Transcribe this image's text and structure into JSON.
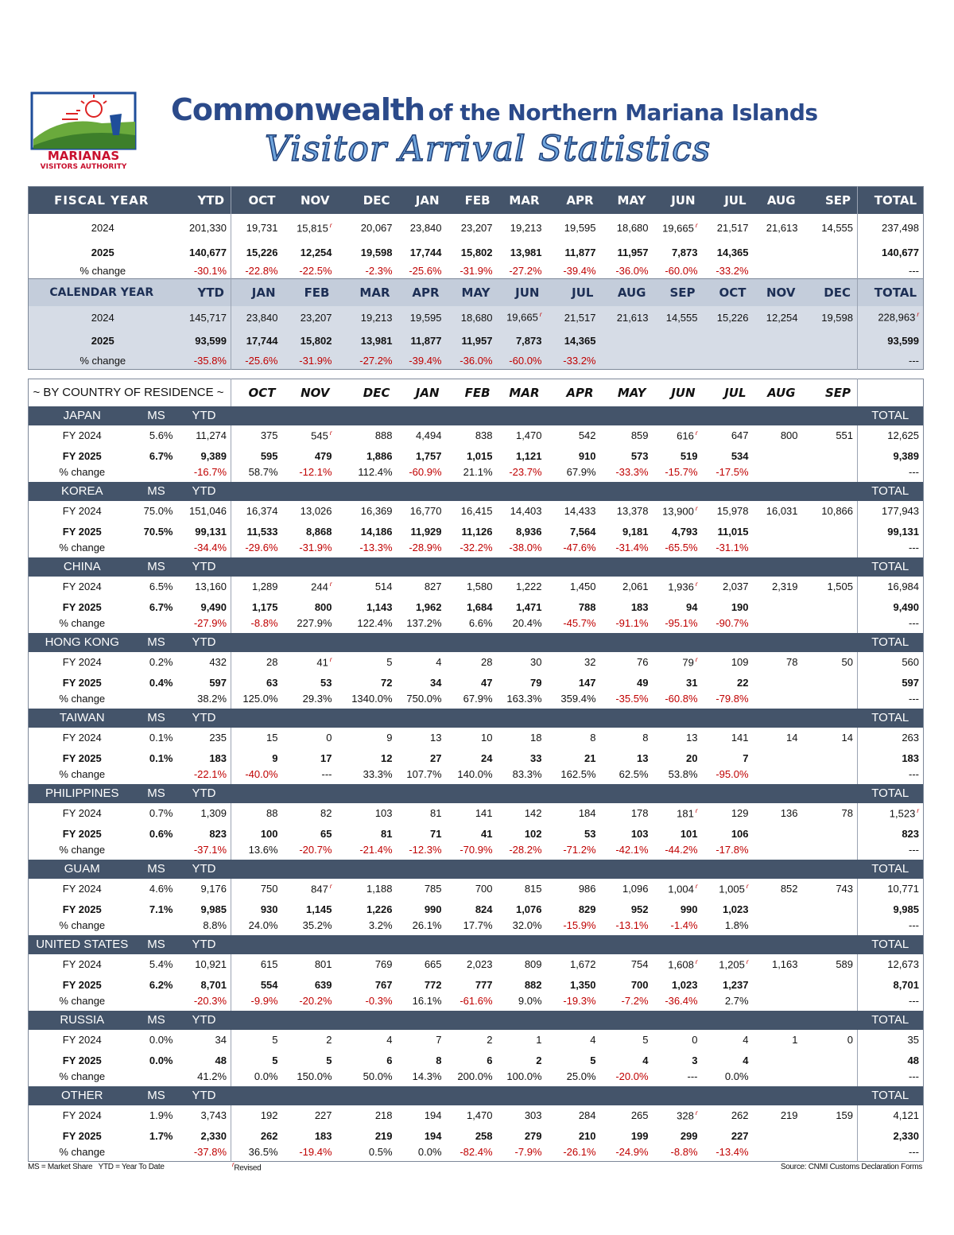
{
  "header": {
    "logo_line1": "MARIANAS",
    "logo_line2": "VISITORS AUTHORITY",
    "title_main": "Commonwealth",
    "title_rest": "of the Northern Mariana Islands",
    "subtitle": "Visitor Arrival Statistics"
  },
  "fiscal": {
    "header": [
      "FISCAL YEAR",
      "YTD",
      "OCT",
      "NOV",
      "DEC",
      "JAN",
      "FEB",
      "MAR",
      "APR",
      "MAY",
      "JUN",
      "JUL",
      "AUG",
      "SEP",
      "TOTAL"
    ],
    "rows": [
      [
        "2024",
        "201,330",
        "19,731",
        {
          "v": "15,815",
          "r": "r"
        },
        "20,067",
        "23,840",
        "23,207",
        "19,213",
        "19,595",
        "18,680",
        {
          "v": "19,665",
          "r": "r"
        },
        "21,517",
        "21,613",
        "14,555",
        "237,498"
      ],
      [
        "2025",
        "140,677",
        "15,226",
        "12,254",
        "19,598",
        "17,744",
        "15,802",
        "13,981",
        "11,877",
        "11,957",
        "7,873",
        "14,365",
        null,
        null,
        "140,677"
      ],
      [
        "% change",
        "-30.1%",
        "-22.8%",
        "-22.5%",
        "-2.3%",
        "-25.6%",
        "-31.9%",
        "-27.2%",
        "-39.4%",
        "-36.0%",
        "-60.0%",
        "-33.2%",
        null,
        null,
        "---"
      ]
    ]
  },
  "calendar": {
    "header": [
      "CALENDAR YEAR",
      "YTD",
      "JAN",
      "FEB",
      "MAR",
      "APR",
      "MAY",
      "JUN",
      "JUL",
      "AUG",
      "SEP",
      "OCT",
      "NOV",
      "DEC",
      "TOTAL"
    ],
    "rows": [
      [
        "2024",
        "145,717",
        "23,840",
        "23,207",
        "19,213",
        "19,595",
        "18,680",
        {
          "v": "19,665",
          "r": "r"
        },
        "21,517",
        "21,613",
        "14,555",
        "15,226",
        "12,254",
        "19,598",
        {
          "v": "228,963",
          "r": "r"
        }
      ],
      [
        "2025",
        "93,599",
        "17,744",
        "15,802",
        "13,981",
        "11,877",
        "11,957",
        "7,873",
        "14,365",
        null,
        null,
        null,
        null,
        null,
        "93,599"
      ],
      [
        "% change",
        "-35.8%",
        "-25.6%",
        "-31.9%",
        "-27.2%",
        "-39.4%",
        "-36.0%",
        "-60.0%",
        "-33.2%",
        null,
        null,
        null,
        null,
        null,
        "---"
      ]
    ]
  },
  "by_country": {
    "header": [
      "~ BY COUNTRY OF RESIDENCE ~",
      "OCT",
      "NOV",
      "DEC",
      "JAN",
      "FEB",
      "MAR",
      "APR",
      "MAY",
      "JUN",
      "JUL",
      "AUG",
      "SEP"
    ],
    "countries": [
      {
        "name": "JAPAN",
        "ms_label": "MS",
        "ytd_label": "YTD",
        "total_label": "TOTAL",
        "rows": [
          [
            "FY 2024",
            "5.6%",
            "11,274",
            "375",
            {
              "v": "545",
              "r": "r"
            },
            "888",
            "4,494",
            "838",
            "1,470",
            "542",
            "859",
            {
              "v": "616",
              "r": "r"
            },
            "647",
            "800",
            "551",
            "12,625"
          ],
          [
            "FY 2025",
            "6.7%",
            "9,389",
            "595",
            "479",
            "1,886",
            "1,757",
            "1,015",
            "1,121",
            "910",
            "573",
            "519",
            "534",
            null,
            null,
            "9,389"
          ],
          [
            "% change",
            null,
            "-16.7%",
            "58.7%",
            "-12.1%",
            "112.4%",
            "-60.9%",
            "21.1%",
            "-23.7%",
            "67.9%",
            "-33.3%",
            "-15.7%",
            "-17.5%",
            null,
            null,
            "---"
          ]
        ]
      },
      {
        "name": "KOREA",
        "ms_label": "MS",
        "ytd_label": "YTD",
        "total_label": "TOTAL",
        "rows": [
          [
            "FY 2024",
            "75.0%",
            "151,046",
            "16,374",
            "13,026",
            "16,369",
            "16,770",
            "16,415",
            "14,403",
            "14,433",
            "13,378",
            {
              "v": "13,900",
              "r": "r"
            },
            "15,978",
            "16,031",
            "10,866",
            "177,943"
          ],
          [
            "FY 2025",
            "70.5%",
            "99,131",
            "11,533",
            "8,868",
            "14,186",
            "11,929",
            "11,126",
            "8,936",
            "7,564",
            "9,181",
            "4,793",
            "11,015",
            null,
            null,
            "99,131"
          ],
          [
            "% change",
            null,
            "-34.4%",
            "-29.6%",
            "-31.9%",
            "-13.3%",
            "-28.9%",
            "-32.2%",
            "-38.0%",
            "-47.6%",
            "-31.4%",
            "-65.5%",
            "-31.1%",
            null,
            null,
            "---"
          ]
        ]
      },
      {
        "name": "CHINA",
        "ms_label": "MS",
        "ytd_label": "YTD",
        "total_label": "TOTAL",
        "rows": [
          [
            "FY 2024",
            "6.5%",
            "13,160",
            "1,289",
            {
              "v": "244",
              "r": "r"
            },
            "514",
            "827",
            "1,580",
            "1,222",
            "1,450",
            "2,061",
            {
              "v": "1,936",
              "r": "r"
            },
            "2,037",
            "2,319",
            "1,505",
            "16,984"
          ],
          [
            "FY 2025",
            "6.7%",
            "9,490",
            "1,175",
            "800",
            "1,143",
            "1,962",
            "1,684",
            "1,471",
            "788",
            "183",
            "94",
            "190",
            null,
            null,
            "9,490"
          ],
          [
            "% change",
            null,
            "-27.9%",
            "-8.8%",
            "227.9%",
            "122.4%",
            "137.2%",
            "6.6%",
            "20.4%",
            "-45.7%",
            "-91.1%",
            "-95.1%",
            "-90.7%",
            null,
            null,
            "---"
          ]
        ]
      },
      {
        "name": "HONG KONG",
        "ms_label": "MS",
        "ytd_label": "YTD",
        "total_label": "TOTAL",
        "rows": [
          [
            "FY 2024",
            "0.2%",
            "432",
            "28",
            {
              "v": "41",
              "r": "r"
            },
            "5",
            "4",
            "28",
            "30",
            "32",
            "76",
            {
              "v": "79",
              "r": "r"
            },
            "109",
            "78",
            "50",
            "560"
          ],
          [
            "FY 2025",
            "0.4%",
            "597",
            "63",
            "53",
            "72",
            "34",
            "47",
            "79",
            "147",
            "49",
            "31",
            "22",
            null,
            null,
            "597"
          ],
          [
            "% change",
            null,
            "38.2%",
            "125.0%",
            "29.3%",
            "1340.0%",
            "750.0%",
            "67.9%",
            "163.3%",
            "359.4%",
            "-35.5%",
            "-60.8%",
            "-79.8%",
            null,
            null,
            "---"
          ]
        ]
      },
      {
        "name": "TAIWAN",
        "ms_label": "MS",
        "ytd_label": "YTD",
        "total_label": "TOTAL",
        "rows": [
          [
            "FY 2024",
            "0.1%",
            "235",
            "15",
            "0",
            "9",
            "13",
            "10",
            "18",
            "8",
            "8",
            "13",
            "141",
            "14",
            "14",
            "263"
          ],
          [
            "FY 2025",
            "0.1%",
            "183",
            "9",
            "17",
            "12",
            "27",
            "24",
            "33",
            "21",
            "13",
            "20",
            "7",
            null,
            null,
            "183"
          ],
          [
            "% change",
            null,
            "-22.1%",
            "-40.0%",
            "---",
            "33.3%",
            "107.7%",
            "140.0%",
            "83.3%",
            "162.5%",
            "62.5%",
            "53.8%",
            "-95.0%",
            null,
            null,
            "---"
          ]
        ]
      },
      {
        "name": "PHILIPPINES",
        "ms_label": "MS",
        "ytd_label": "YTD",
        "total_label": "TOTAL",
        "rows": [
          [
            "FY 2024",
            "0.7%",
            "1,309",
            "88",
            "82",
            "103",
            "81",
            "141",
            "142",
            "184",
            "178",
            {
              "v": "181",
              "r": "r"
            },
            "129",
            "136",
            "78",
            {
              "v": "1,523",
              "r": "r"
            }
          ],
          [
            "FY 2025",
            "0.6%",
            "823",
            "100",
            "65",
            "81",
            "71",
            "41",
            "102",
            "53",
            "103",
            "101",
            "106",
            null,
            null,
            "823"
          ],
          [
            "% change",
            null,
            "-37.1%",
            "13.6%",
            "-20.7%",
            "-21.4%",
            "-12.3%",
            "-70.9%",
            "-28.2%",
            "-71.2%",
            "-42.1%",
            "-44.2%",
            "-17.8%",
            null,
            null,
            "---"
          ]
        ]
      },
      {
        "name": "GUAM",
        "ms_label": "MS",
        "ytd_label": "YTD",
        "total_label": "TOTAL",
        "rows": [
          [
            "FY 2024",
            "4.6%",
            "9,176",
            "750",
            {
              "v": "847",
              "r": "r"
            },
            "1,188",
            "785",
            "700",
            "815",
            "986",
            "1,096",
            {
              "v": "1,004",
              "r": "r"
            },
            {
              "v": "1,005",
              "r": "r"
            },
            "852",
            "743",
            "10,771"
          ],
          [
            "FY 2025",
            "7.1%",
            "9,985",
            "930",
            "1,145",
            "1,226",
            "990",
            "824",
            "1,076",
            "829",
            "952",
            "990",
            "1,023",
            null,
            null,
            "9,985"
          ],
          [
            "% change",
            null,
            "8.8%",
            "24.0%",
            "35.2%",
            "3.2%",
            "26.1%",
            "17.7%",
            "32.0%",
            "-15.9%",
            "-13.1%",
            "-1.4%",
            "1.8%",
            null,
            null,
            "---"
          ]
        ]
      },
      {
        "name": "UNITED STATES",
        "ms_label": "MS",
        "ytd_label": "YTD",
        "total_label": "TOTAL",
        "rows": [
          [
            "FY 2024",
            "5.4%",
            "10,921",
            "615",
            "801",
            "769",
            "665",
            "2,023",
            "809",
            "1,672",
            "754",
            {
              "v": "1,608",
              "r": "r"
            },
            {
              "v": "1,205",
              "r": "r"
            },
            "1,163",
            "589",
            "12,673"
          ],
          [
            "FY 2025",
            "6.2%",
            "8,701",
            "554",
            "639",
            "767",
            "772",
            "777",
            "882",
            "1,350",
            "700",
            "1,023",
            "1,237",
            null,
            null,
            "8,701"
          ],
          [
            "% change",
            null,
            "-20.3%",
            "-9.9%",
            "-20.2%",
            "-0.3%",
            "16.1%",
            "-61.6%",
            "9.0%",
            "-19.3%",
            "-7.2%",
            "-36.4%",
            "2.7%",
            null,
            null,
            "---"
          ]
        ]
      },
      {
        "name": "RUSSIA",
        "ms_label": "MS",
        "ytd_label": "YTD",
        "total_label": "TOTAL",
        "rows": [
          [
            "FY 2024",
            "0.0%",
            "34",
            "5",
            "2",
            "4",
            "7",
            "2",
            "1",
            "4",
            "5",
            "0",
            "4",
            "1",
            "0",
            "35"
          ],
          [
            "FY 2025",
            "0.0%",
            "48",
            "5",
            "5",
            "6",
            "8",
            "6",
            "2",
            "5",
            "4",
            "3",
            "4",
            null,
            null,
            "48"
          ],
          [
            "% change",
            null,
            "41.2%",
            "0.0%",
            "150.0%",
            "50.0%",
            "14.3%",
            "200.0%",
            "100.0%",
            "25.0%",
            "-20.0%",
            "---",
            "0.0%",
            null,
            null,
            "---"
          ]
        ]
      },
      {
        "name": "OTHER",
        "ms_label": "MS",
        "ytd_label": "YTD",
        "total_label": "TOTAL",
        "rows": [
          [
            "FY 2024",
            "1.9%",
            "3,743",
            "192",
            "227",
            "218",
            "194",
            "1,470",
            "303",
            "284",
            "265",
            {
              "v": "328",
              "r": "r"
            },
            "262",
            "219",
            "159",
            "4,121"
          ],
          [
            "FY 2025",
            "1.7%",
            "2,330",
            "262",
            "183",
            "219",
            "194",
            "258",
            "279",
            "210",
            "199",
            "299",
            "227",
            null,
            null,
            "2,330"
          ],
          [
            "% change",
            null,
            "-37.8%",
            "36.5%",
            "-19.4%",
            "0.5%",
            "0.0%",
            "-82.4%",
            "-7.9%",
            "-26.1%",
            "-24.9%",
            "-8.8%",
            "-13.4%",
            null,
            null,
            "---"
          ]
        ]
      }
    ]
  },
  "footer": {
    "legend": "MS = Market Share   YTD = Year To Date",
    "revised_mark": "r",
    "revised_label": "Revised",
    "source": "Source: CNMI Customs Declaration Forms"
  }
}
